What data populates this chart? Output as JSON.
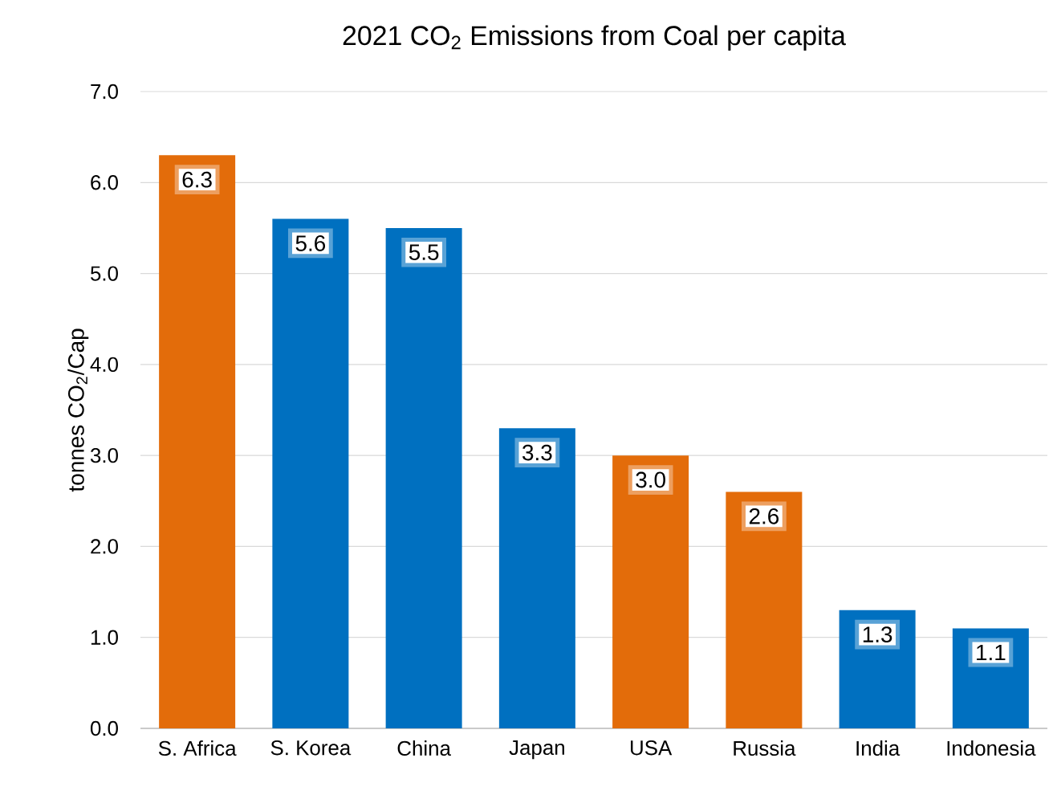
{
  "chart_data": {
    "type": "bar",
    "title": "2021 CO$_{2}$ Emissions from Coal per capita",
    "ylabel": "tonnes CO$_{2}$/Cap",
    "categories": [
      "S. Africa",
      "S. Korea",
      "China",
      "Japan",
      "USA",
      "Russia",
      "India",
      "Indonesia"
    ],
    "values": [
      6.3,
      5.6,
      5.5,
      3.3,
      3.0,
      2.6,
      1.3,
      1.1
    ],
    "value_labels": [
      "6.3",
      "5.6",
      "5.5",
      "3.3",
      "3.0",
      "2.6",
      "1.3",
      "1.1"
    ],
    "colors": [
      "#e36c0a",
      "#0070c0",
      "#0070c0",
      "#0070c0",
      "#e36c0a",
      "#e36c0a",
      "#0070c0",
      "#0070c0"
    ],
    "ylim": [
      0,
      7
    ],
    "yticks": [
      {
        "value": 0,
        "label": "0.0"
      },
      {
        "value": 1,
        "label": "1.0"
      },
      {
        "value": 2,
        "label": "2.0"
      },
      {
        "value": 3,
        "label": "3.0"
      },
      {
        "value": 4,
        "label": "4.0"
      },
      {
        "value": 5,
        "label": "5.0"
      },
      {
        "value": 6,
        "label": "6.0"
      },
      {
        "value": 7,
        "label": "7.0"
      }
    ],
    "grid": "y"
  }
}
